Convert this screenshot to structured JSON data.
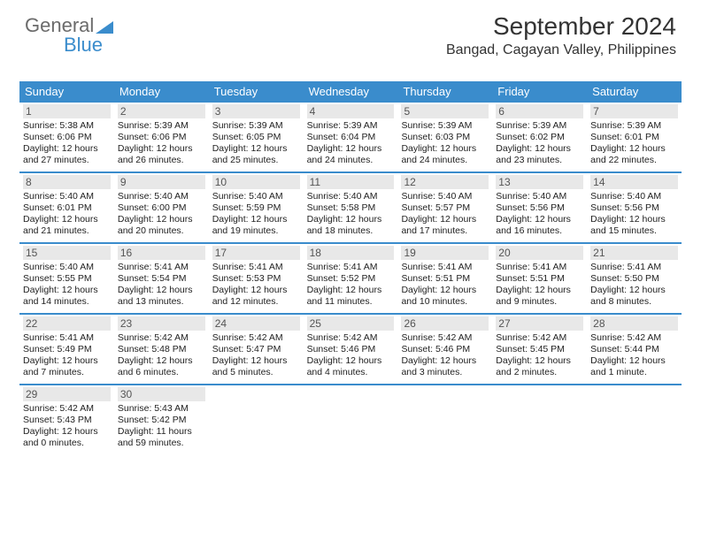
{
  "brand": {
    "part1": "General",
    "part2": "Blue"
  },
  "title": "September 2024",
  "subtitle": "Bangad, Cagayan Valley, Philippines",
  "colors": {
    "accent": "#3a8ccc",
    "daynum_bg": "#e8e8e8",
    "text": "#333333",
    "logo_gray": "#6b6b6b"
  },
  "day_headers": [
    "Sunday",
    "Monday",
    "Tuesday",
    "Wednesday",
    "Thursday",
    "Friday",
    "Saturday"
  ],
  "weeks": [
    [
      {
        "n": "1",
        "sr": "5:38 AM",
        "ss": "6:06 PM",
        "dl": "12 hours and 27 minutes."
      },
      {
        "n": "2",
        "sr": "5:39 AM",
        "ss": "6:06 PM",
        "dl": "12 hours and 26 minutes."
      },
      {
        "n": "3",
        "sr": "5:39 AM",
        "ss": "6:05 PM",
        "dl": "12 hours and 25 minutes."
      },
      {
        "n": "4",
        "sr": "5:39 AM",
        "ss": "6:04 PM",
        "dl": "12 hours and 24 minutes."
      },
      {
        "n": "5",
        "sr": "5:39 AM",
        "ss": "6:03 PM",
        "dl": "12 hours and 24 minutes."
      },
      {
        "n": "6",
        "sr": "5:39 AM",
        "ss": "6:02 PM",
        "dl": "12 hours and 23 minutes."
      },
      {
        "n": "7",
        "sr": "5:39 AM",
        "ss": "6:01 PM",
        "dl": "12 hours and 22 minutes."
      }
    ],
    [
      {
        "n": "8",
        "sr": "5:40 AM",
        "ss": "6:01 PM",
        "dl": "12 hours and 21 minutes."
      },
      {
        "n": "9",
        "sr": "5:40 AM",
        "ss": "6:00 PM",
        "dl": "12 hours and 20 minutes."
      },
      {
        "n": "10",
        "sr": "5:40 AM",
        "ss": "5:59 PM",
        "dl": "12 hours and 19 minutes."
      },
      {
        "n": "11",
        "sr": "5:40 AM",
        "ss": "5:58 PM",
        "dl": "12 hours and 18 minutes."
      },
      {
        "n": "12",
        "sr": "5:40 AM",
        "ss": "5:57 PM",
        "dl": "12 hours and 17 minutes."
      },
      {
        "n": "13",
        "sr": "5:40 AM",
        "ss": "5:56 PM",
        "dl": "12 hours and 16 minutes."
      },
      {
        "n": "14",
        "sr": "5:40 AM",
        "ss": "5:56 PM",
        "dl": "12 hours and 15 minutes."
      }
    ],
    [
      {
        "n": "15",
        "sr": "5:40 AM",
        "ss": "5:55 PM",
        "dl": "12 hours and 14 minutes."
      },
      {
        "n": "16",
        "sr": "5:41 AM",
        "ss": "5:54 PM",
        "dl": "12 hours and 13 minutes."
      },
      {
        "n": "17",
        "sr": "5:41 AM",
        "ss": "5:53 PM",
        "dl": "12 hours and 12 minutes."
      },
      {
        "n": "18",
        "sr": "5:41 AM",
        "ss": "5:52 PM",
        "dl": "12 hours and 11 minutes."
      },
      {
        "n": "19",
        "sr": "5:41 AM",
        "ss": "5:51 PM",
        "dl": "12 hours and 10 minutes."
      },
      {
        "n": "20",
        "sr": "5:41 AM",
        "ss": "5:51 PM",
        "dl": "12 hours and 9 minutes."
      },
      {
        "n": "21",
        "sr": "5:41 AM",
        "ss": "5:50 PM",
        "dl": "12 hours and 8 minutes."
      }
    ],
    [
      {
        "n": "22",
        "sr": "5:41 AM",
        "ss": "5:49 PM",
        "dl": "12 hours and 7 minutes."
      },
      {
        "n": "23",
        "sr": "5:42 AM",
        "ss": "5:48 PM",
        "dl": "12 hours and 6 minutes."
      },
      {
        "n": "24",
        "sr": "5:42 AM",
        "ss": "5:47 PM",
        "dl": "12 hours and 5 minutes."
      },
      {
        "n": "25",
        "sr": "5:42 AM",
        "ss": "5:46 PM",
        "dl": "12 hours and 4 minutes."
      },
      {
        "n": "26",
        "sr": "5:42 AM",
        "ss": "5:46 PM",
        "dl": "12 hours and 3 minutes."
      },
      {
        "n": "27",
        "sr": "5:42 AM",
        "ss": "5:45 PM",
        "dl": "12 hours and 2 minutes."
      },
      {
        "n": "28",
        "sr": "5:42 AM",
        "ss": "5:44 PM",
        "dl": "12 hours and 1 minute."
      }
    ],
    [
      {
        "n": "29",
        "sr": "5:42 AM",
        "ss": "5:43 PM",
        "dl": "12 hours and 0 minutes."
      },
      {
        "n": "30",
        "sr": "5:43 AM",
        "ss": "5:42 PM",
        "dl": "11 hours and 59 minutes."
      },
      null,
      null,
      null,
      null,
      null
    ]
  ],
  "labels": {
    "sunrise": "Sunrise: ",
    "sunset": "Sunset: ",
    "daylight": "Daylight: "
  }
}
